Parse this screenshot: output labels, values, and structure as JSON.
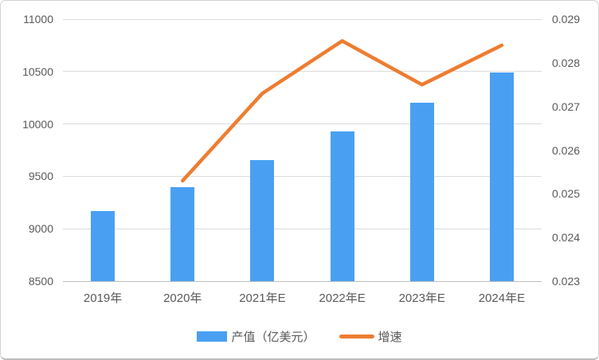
{
  "chart_data": {
    "type": "bar+line combo, dual y-axis",
    "categories": [
      "2019年",
      "2020年",
      "2021年E",
      "2022年E",
      "2023年E",
      "2024年E"
    ],
    "series": [
      {
        "name": "产值（亿美元）",
        "type": "bar",
        "axis": "left",
        "color": "#49A0F2",
        "values": [
          9170,
          9400,
          9655,
          9930,
          10200,
          10490
        ]
      },
      {
        "name": "增速",
        "type": "line",
        "axis": "right",
        "color": "#ED7D31",
        "values": [
          null,
          0.0253,
          0.0273,
          0.0285,
          0.0275,
          0.0284
        ]
      }
    ],
    "left_axis": {
      "min": 8500,
      "max": 11000,
      "tick_labels": [
        "11000",
        "10500",
        "10000",
        "9500",
        "9000",
        "8500"
      ]
    },
    "right_axis": {
      "min": 0.023,
      "max": 0.029,
      "tick_labels": [
        "0.029",
        "0.028",
        "0.027",
        "0.026",
        "0.025",
        "0.024",
        "0.023"
      ]
    },
    "grid": "horizontal light-gray lines at left-axis ticks",
    "legend_position": "bottom-center",
    "title": "",
    "xlabel": "",
    "ylabel": ""
  },
  "legend": {
    "items": [
      {
        "label": "产值（亿美元）",
        "swatch": "bar",
        "color": "#49A0F2"
      },
      {
        "label": "增速",
        "swatch": "line",
        "color": "#ED7D31"
      }
    ]
  },
  "colors": {
    "bar_blue": "#49A0F2",
    "line_orange": "#ED7D31",
    "gridline": "#dbdbdb",
    "axis_line": "#bfbfbf",
    "label_text": "#595959"
  }
}
